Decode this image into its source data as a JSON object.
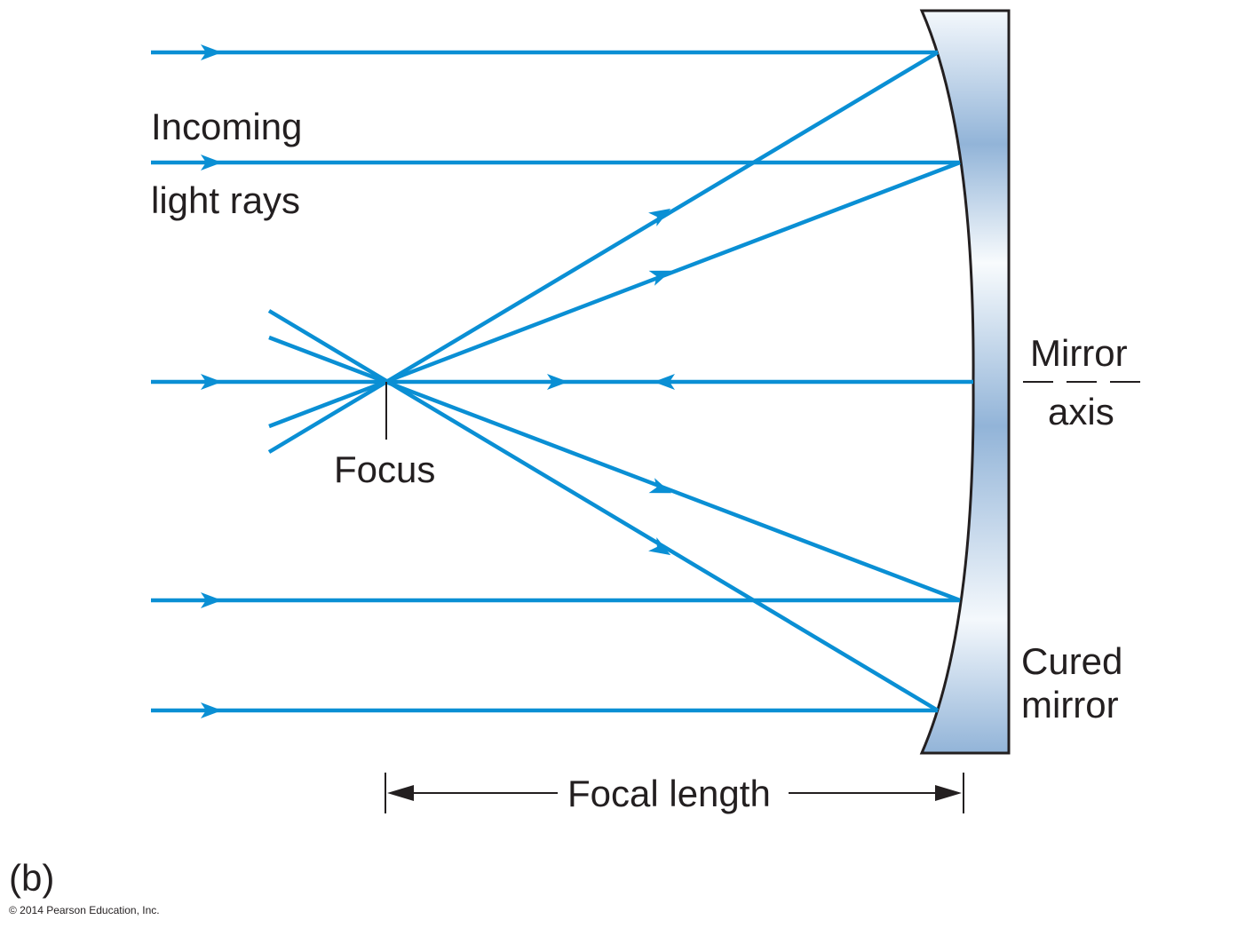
{
  "labels": {
    "incoming_line1": "Incoming",
    "incoming_line2": "light rays",
    "focus": "Focus",
    "mirror_axis_line1": "Mirror",
    "mirror_axis_line2": "axis",
    "mirror_line1": "Cured",
    "mirror_line2": "mirror",
    "focal_length": "Focal length",
    "panel": "(b)",
    "copyright": "© 2014 Pearson Education, Inc."
  },
  "colors": {
    "ray": "#0a8fd4",
    "mirror_light": "#f4f8fc",
    "mirror_dark": "#92b4d8",
    "ink": "#231f20"
  }
}
